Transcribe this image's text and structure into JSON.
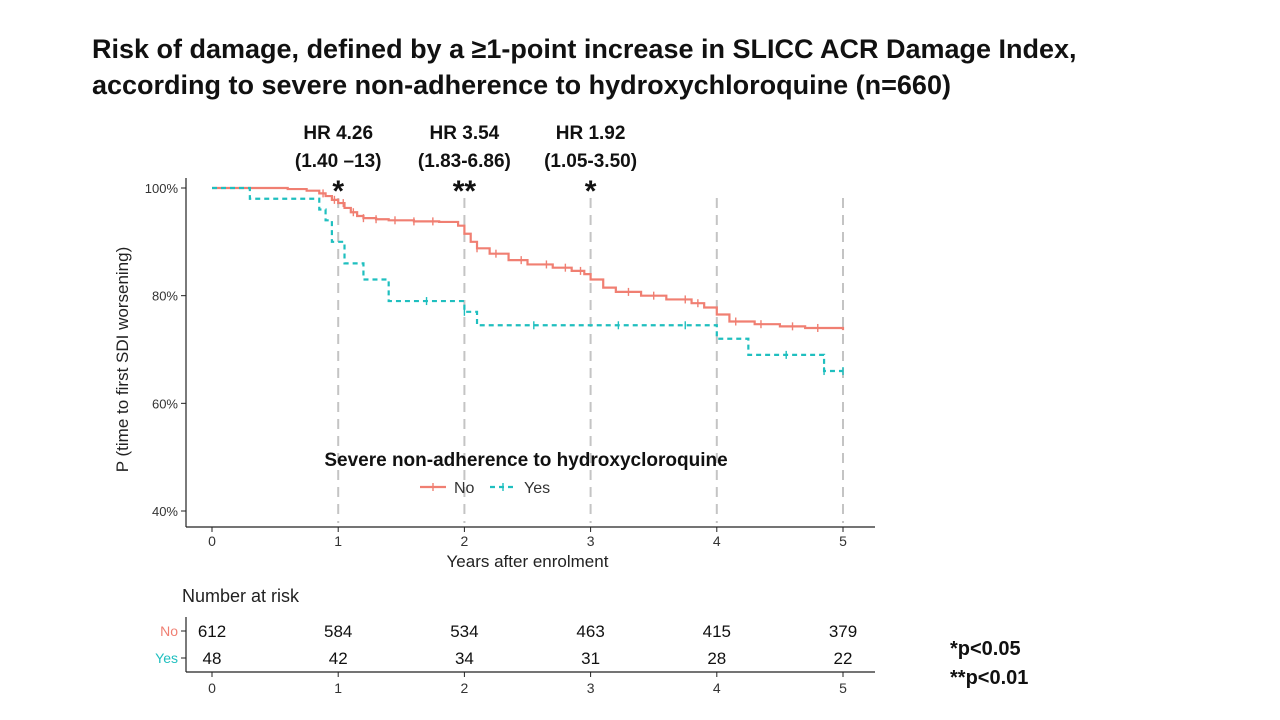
{
  "title": {
    "line1": "Risk of damage, defined by a ≥1-point increase in SLICC ACR Damage Index,",
    "line2": "according to severe non-adherence to hydroxychloroquine (n=660)"
  },
  "footnotes": {
    "p05": "*p<0.05",
    "p01": "**p<0.01"
  },
  "chart_data": {
    "type": "line",
    "subtype": "kaplan-meier",
    "xlabel": "Years after enrolment",
    "ylabel": "P (time to first SDI worsening)",
    "xlim": [
      0,
      5
    ],
    "ylim": [
      0.4,
      1.0
    ],
    "x_ticks": [
      "0",
      "1",
      "2",
      "3",
      "4",
      "5"
    ],
    "y_ticks": [
      {
        "value": 1.0,
        "label": "100%"
      },
      {
        "value": 0.8,
        "label": "80%"
      },
      {
        "value": 0.6,
        "label": "60%"
      },
      {
        "value": 0.4,
        "label": "40%"
      }
    ],
    "reference_lines_x": [
      1,
      2,
      3,
      4,
      5
    ],
    "legend": {
      "title": "Severe non-adherence to hydroxycloroquine",
      "position": "inside-bottom-center",
      "entries": [
        "No",
        "Yes"
      ]
    },
    "colors": {
      "No": "#f07f72",
      "Yes": "#1fbfbf",
      "ref": "#c4c4c4",
      "axis": "#222222"
    },
    "series": [
      {
        "name": "No",
        "style": "solid",
        "x": [
          0,
          0.3,
          0.6,
          0.75,
          0.85,
          0.9,
          0.95,
          1.0,
          1.05,
          1.1,
          1.15,
          1.2,
          1.3,
          1.4,
          1.6,
          1.8,
          1.95,
          2.0,
          2.05,
          2.1,
          2.2,
          2.35,
          2.5,
          2.7,
          2.85,
          2.95,
          3.0,
          3.1,
          3.2,
          3.4,
          3.6,
          3.8,
          3.9,
          4.0,
          4.1,
          4.3,
          4.5,
          4.7,
          5.0
        ],
        "y": [
          1.0,
          1.0,
          0.998,
          0.995,
          0.99,
          0.985,
          0.978,
          0.972,
          0.963,
          0.955,
          0.948,
          0.944,
          0.942,
          0.94,
          0.938,
          0.937,
          0.93,
          0.915,
          0.9,
          0.888,
          0.878,
          0.866,
          0.858,
          0.852,
          0.846,
          0.84,
          0.83,
          0.815,
          0.807,
          0.8,
          0.793,
          0.786,
          0.778,
          0.765,
          0.752,
          0.747,
          0.743,
          0.74,
          0.736
        ],
        "censor_x": [
          0.88,
          0.97,
          1.04,
          1.12,
          1.2,
          1.3,
          1.45,
          1.6,
          1.75,
          2.1,
          2.25,
          2.45,
          2.65,
          2.8,
          2.92,
          3.3,
          3.5,
          3.75,
          3.85,
          4.15,
          4.35,
          4.6,
          4.8
        ],
        "numbers_at_risk": [
          612,
          584,
          534,
          463,
          415,
          379
        ]
      },
      {
        "name": "Yes",
        "style": "dashed",
        "x": [
          0,
          0.3,
          0.85,
          0.9,
          0.95,
          1.05,
          1.2,
          1.4,
          2.0,
          2.1,
          3.0,
          4.0,
          4.25,
          4.85,
          5.0
        ],
        "y": [
          1.0,
          0.98,
          0.96,
          0.94,
          0.9,
          0.86,
          0.83,
          0.79,
          0.77,
          0.745,
          0.745,
          0.72,
          0.69,
          0.66,
          0.66
        ],
        "censor_x": [
          1.7,
          2.0,
          2.55,
          3.22,
          3.75,
          4.55,
          4.85,
          5.0
        ],
        "numbers_at_risk": [
          48,
          42,
          34,
          31,
          28,
          22
        ]
      }
    ],
    "annotations": [
      {
        "x": 1,
        "hr": "HR 4.26",
        "ci": "(1.40 –13)",
        "stars": "*"
      },
      {
        "x": 2,
        "hr": "HR 3.54",
        "ci": "(1.83-6.86)",
        "stars": "**"
      },
      {
        "x": 3,
        "hr": "HR 1.92",
        "ci": "(1.05-3.50)",
        "stars": "*"
      }
    ],
    "risk_table": {
      "title": "Number at risk",
      "row_labels": [
        "No",
        "Yes"
      ],
      "x_ticks": [
        "0",
        "1",
        "2",
        "3",
        "4",
        "5"
      ]
    }
  }
}
